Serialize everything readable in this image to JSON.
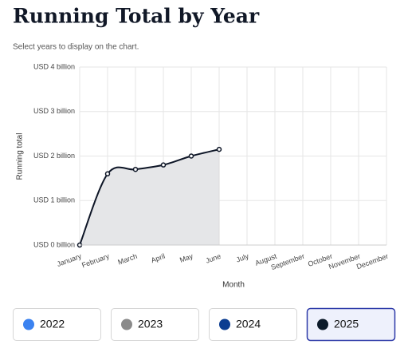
{
  "chart_data": {
    "type": "area-line",
    "title": "Running Total by Year",
    "subtitle": "Select years to display on the chart.",
    "x_label": "Month",
    "y_label": "Running total",
    "categories": [
      "January",
      "February",
      "March",
      "April",
      "May",
      "June",
      "July",
      "August",
      "September",
      "October",
      "November",
      "December"
    ],
    "values": [
      0,
      1.6,
      1.7,
      1.8,
      2.0,
      2.15,
      null,
      null,
      null,
      null,
      null,
      null
    ],
    "color": "#0d1526",
    "area_color": "#e5e6e8",
    "ylim": [
      0,
      4
    ],
    "yticks": [
      {
        "value": 0,
        "label": "USD 0 billion"
      },
      {
        "value": 1,
        "label": "USD 1 billion"
      },
      {
        "value": 2,
        "label": "USD 2 billion"
      },
      {
        "value": 3,
        "label": "USD 3 billion"
      },
      {
        "value": 4,
        "label": "USD 4 billion"
      }
    ],
    "grid": true
  },
  "year_buttons": [
    {
      "label": "2022",
      "color": "#3b82f0",
      "selected": false
    },
    {
      "label": "2023",
      "color": "#8a8a8a",
      "selected": false
    },
    {
      "label": "2024",
      "color": "#0b3d91",
      "selected": false
    },
    {
      "label": "2025",
      "color": "#0d1b2a",
      "selected": true
    }
  ]
}
